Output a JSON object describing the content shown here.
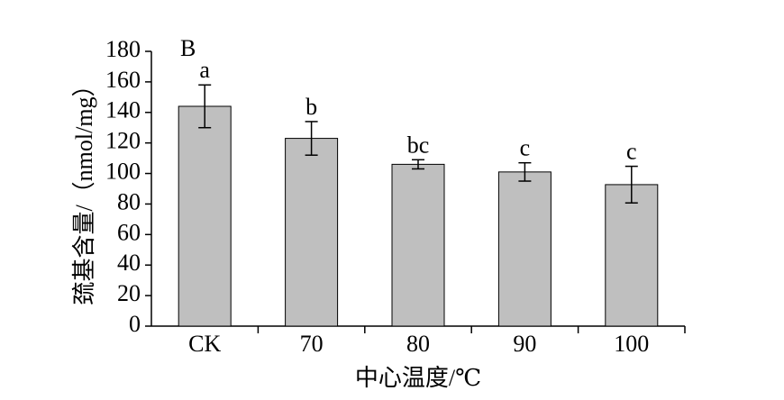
{
  "chart_data": {
    "type": "bar",
    "panel_label": "B",
    "y_label": "巯基含量/（nmol/mg）",
    "x_label": "中心温度/℃",
    "categories": [
      "CK",
      "70",
      "80",
      "90",
      "100"
    ],
    "values": [
      144,
      123,
      106,
      101,
      92.7
    ],
    "errors": [
      14,
      11,
      3,
      6,
      12
    ],
    "annotations": [
      "a",
      "b",
      "bc",
      "c",
      "c"
    ],
    "color": "#bfbfbf",
    "ylim": [
      0,
      180
    ],
    "yticks": [
      0,
      20,
      40,
      60,
      80,
      100,
      120,
      140,
      160,
      180
    ],
    "grid": false
  }
}
